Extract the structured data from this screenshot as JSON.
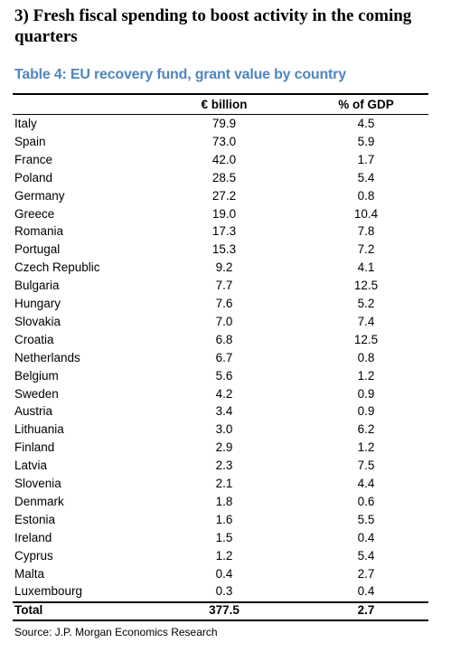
{
  "heading": "3) Fresh fiscal spending to boost activity in the coming quarters",
  "table": {
    "title": "Table 4: EU recovery fund, grant value by country",
    "columns": [
      "",
      "€ billion",
      "% of GDP"
    ],
    "rows": [
      [
        "Italy",
        "79.9",
        "4.5"
      ],
      [
        "Spain",
        "73.0",
        "5.9"
      ],
      [
        "France",
        "42.0",
        "1.7"
      ],
      [
        "Poland",
        "28.5",
        "5.4"
      ],
      [
        "Germany",
        "27.2",
        "0.8"
      ],
      [
        "Greece",
        "19.0",
        "10.4"
      ],
      [
        "Romania",
        "17.3",
        "7.8"
      ],
      [
        "Portugal",
        "15.3",
        "7.2"
      ],
      [
        "Czech Republic",
        "9.2",
        "4.1"
      ],
      [
        "Bulgaria",
        "7.7",
        "12.5"
      ],
      [
        "Hungary",
        "7.6",
        "5.2"
      ],
      [
        "Slovakia",
        "7.0",
        "7.4"
      ],
      [
        "Croatia",
        "6.8",
        "12.5"
      ],
      [
        "Netherlands",
        "6.7",
        "0.8"
      ],
      [
        "Belgium",
        "5.6",
        "1.2"
      ],
      [
        "Sweden",
        "4.2",
        "0.9"
      ],
      [
        "Austria",
        "3.4",
        "0.9"
      ],
      [
        "Lithuania",
        "3.0",
        "6.2"
      ],
      [
        "Finland",
        "2.9",
        "1.2"
      ],
      [
        "Latvia",
        "2.3",
        "7.5"
      ],
      [
        "Slovenia",
        "2.1",
        "4.4"
      ],
      [
        "Denmark",
        "1.8",
        "0.6"
      ],
      [
        "Estonia",
        "1.6",
        "5.5"
      ],
      [
        "Ireland",
        "1.5",
        "0.4"
      ],
      [
        "Cyprus",
        "1.2",
        "5.4"
      ],
      [
        "Malta",
        "0.4",
        "2.7"
      ],
      [
        "Luxembourg",
        "0.3",
        "0.4"
      ]
    ],
    "total": [
      "Total",
      "377.5",
      "2.7"
    ],
    "source": "Source: J.P. Morgan Economics Research"
  }
}
